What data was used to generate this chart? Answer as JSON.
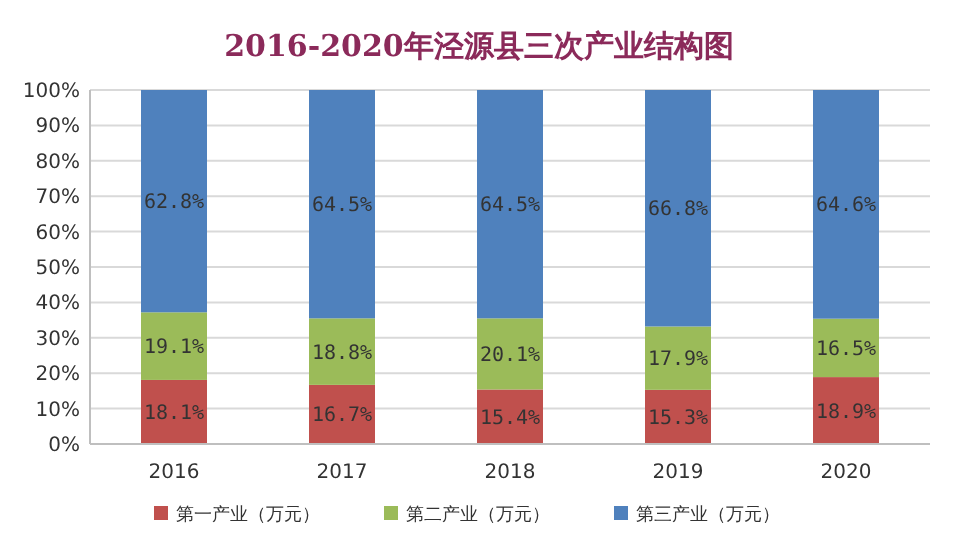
{
  "chart_data": {
    "type": "bar",
    "title": "2016-2020年泾源县三次产业结构图",
    "stacked": true,
    "categories": [
      "2016",
      "2017",
      "2018",
      "2019",
      "2020"
    ],
    "series": [
      {
        "name": "第一产业（万元）",
        "color": "#c0504d",
        "values": [
          18.1,
          16.7,
          15.4,
          15.3,
          18.9
        ],
        "value_labels": [
          "18.1%",
          "16.7%",
          "15.4%",
          "15.3%",
          "18.9%"
        ]
      },
      {
        "name": "第二产业（万元）",
        "color": "#9bbb59",
        "values": [
          19.1,
          18.8,
          20.1,
          17.9,
          16.5
        ],
        "value_labels": [
          "19.1%",
          "18.8%",
          "20.1%",
          "17.9%",
          "16.5%"
        ]
      },
      {
        "name": "第三产业（万元）",
        "color": "#4f81bd",
        "values": [
          62.8,
          64.5,
          64.5,
          66.8,
          64.6
        ],
        "value_labels": [
          "62.8%",
          "64.5%",
          "64.5%",
          "66.8%",
          "64.6%"
        ]
      }
    ],
    "ylim": [
      0,
      100
    ],
    "yticks": [
      {
        "value": 0,
        "label": "0%"
      },
      {
        "value": 10,
        "label": "10%"
      },
      {
        "value": 20,
        "label": "20%"
      },
      {
        "value": 30,
        "label": "30%"
      },
      {
        "value": 40,
        "label": "40%"
      },
      {
        "value": 50,
        "label": "50%"
      },
      {
        "value": 60,
        "label": "60%"
      },
      {
        "value": 70,
        "label": "70%"
      },
      {
        "value": 80,
        "label": "80%"
      },
      {
        "value": 90,
        "label": "90%"
      },
      {
        "value": 100,
        "label": "100%"
      }
    ],
    "grid": "y",
    "legend": "bottom"
  }
}
